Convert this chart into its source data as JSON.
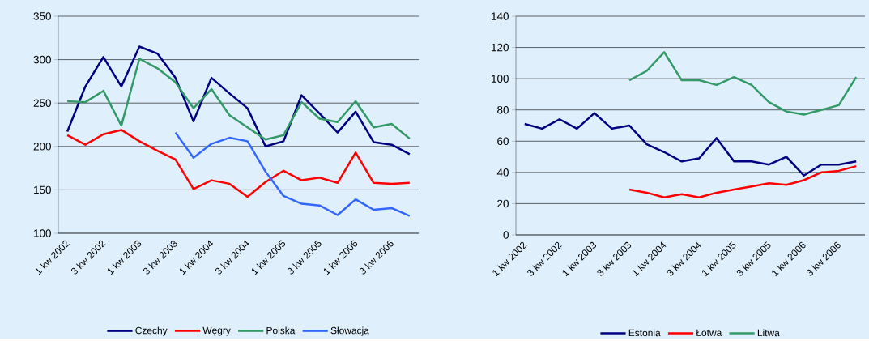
{
  "chart_data": [
    {
      "type": "line",
      "categories": [
        "1 kw 2002",
        null,
        "3 kw 2002",
        null,
        "1 kw 2003",
        null,
        "3 kw 2003",
        null,
        "1 kw 2004",
        null,
        "3 kw 2004",
        null,
        "1 kw 2005",
        null,
        "3 kw 2005",
        null,
        "1 kw 2006",
        null,
        "3 kw 2006",
        null
      ],
      "series": [
        {
          "name": "Czechy",
          "color": "#000080",
          "values": [
            217,
            269,
            303,
            269,
            315,
            307,
            279,
            229,
            279,
            261,
            244,
            200,
            206,
            259,
            238,
            216,
            240,
            205,
            202,
            191
          ]
        },
        {
          "name": "Węgry",
          "color": "#ff0000",
          "values": [
            213,
            202,
            214,
            219,
            206,
            195,
            185,
            151,
            161,
            157,
            142,
            159,
            172,
            161,
            164,
            158,
            193,
            158,
            157,
            158
          ]
        },
        {
          "name": "Polska",
          "color": "#339966",
          "values": [
            252,
            251,
            264,
            224,
            301,
            290,
            274,
            244,
            266,
            236,
            222,
            208,
            213,
            251,
            232,
            228,
            252,
            222,
            226,
            209
          ]
        },
        {
          "name": "Słowacja",
          "color": "#3366ff",
          "values": [
            null,
            null,
            null,
            null,
            null,
            null,
            216,
            187,
            203,
            210,
            206,
            171,
            143,
            134,
            132,
            121,
            139,
            127,
            129,
            120
          ]
        }
      ],
      "ylim": [
        100,
        350
      ],
      "yticks": [
        100,
        150,
        200,
        250,
        300,
        350
      ],
      "grid": "y",
      "legend": "bottom"
    },
    {
      "type": "line",
      "categories": [
        "1 kw 2002",
        null,
        "3 kw 2002",
        null,
        "1 kw 2003",
        null,
        "3 kw 2003",
        null,
        "1 kw 2004",
        null,
        "3 kw 2004",
        null,
        "1 kw 2005",
        null,
        "3 kw 2005",
        null,
        "1 kw 2006",
        null,
        "3 kw 2006",
        null
      ],
      "series": [
        {
          "name": "Estonia",
          "color": "#000080",
          "values": [
            71,
            68,
            74,
            68,
            78,
            68,
            70,
            58,
            53,
            47,
            49,
            62,
            47,
            47,
            45,
            50,
            38,
            45,
            45,
            47
          ]
        },
        {
          "name": "Łotwa",
          "color": "#ff0000",
          "values": [
            null,
            null,
            null,
            null,
            null,
            null,
            29,
            27,
            24,
            26,
            24,
            27,
            29,
            31,
            33,
            32,
            35,
            40,
            41,
            44
          ]
        },
        {
          "name": "Litwa",
          "color": "#339966",
          "values": [
            null,
            null,
            null,
            null,
            null,
            null,
            99,
            105,
            117,
            99,
            99,
            96,
            101,
            96,
            85,
            79,
            77,
            80,
            83,
            101
          ]
        }
      ],
      "ylim": [
        0,
        140
      ],
      "yticks": [
        0,
        20,
        40,
        60,
        80,
        100,
        120,
        140
      ],
      "grid": "y",
      "legend": "bottom"
    }
  ]
}
